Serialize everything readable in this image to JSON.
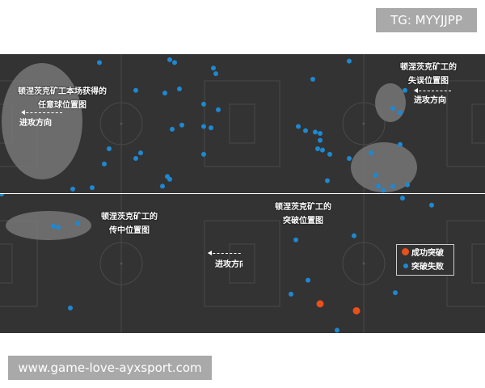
{
  "header_tag": "TG: MYYJJPP",
  "watermark": "www.game-love-ayxsport.com",
  "colors": {
    "pitch": "#333333",
    "dot_blue": "#1e88d0",
    "dot_orange": "#e8501c",
    "highlight": "#777777"
  },
  "direction_label": "进攻方向",
  "panels": [
    {
      "title_1": "顿涅茨克矿工本场获得的",
      "title_2": "任意球位置图",
      "direction": "left",
      "points": [
        [
          41,
          6
        ],
        [
          70,
          4
        ],
        [
          72,
          6
        ],
        [
          88,
          10
        ],
        [
          89,
          14
        ],
        [
          56,
          26
        ],
        [
          68,
          28
        ],
        [
          74,
          25
        ],
        [
          84,
          36
        ],
        [
          90,
          40
        ],
        [
          71,
          54
        ],
        [
          75,
          51
        ],
        [
          84,
          52
        ],
        [
          87,
          53
        ],
        [
          84,
          72
        ],
        [
          45,
          68
        ],
        [
          58,
          71
        ],
        [
          56,
          75
        ],
        [
          43,
          79
        ],
        [
          69,
          88
        ],
        [
          70,
          90
        ],
        [
          67,
          95
        ],
        [
          38,
          96
        ],
        [
          30,
          97
        ]
      ]
    },
    {
      "title_1": "顿涅茨克矿工的",
      "title_2": "失误位置图",
      "direction": "left",
      "points": [
        [
          44,
          5
        ],
        [
          29,
          18
        ],
        [
          67,
          26
        ],
        [
          62,
          39
        ],
        [
          65,
          42
        ],
        [
          23,
          52
        ],
        [
          26,
          55
        ],
        [
          30,
          56
        ],
        [
          32,
          57
        ],
        [
          32,
          62
        ],
        [
          31,
          68
        ],
        [
          33,
          69
        ],
        [
          36,
          72
        ],
        [
          44,
          75
        ],
        [
          65,
          65
        ],
        [
          53,
          71
        ],
        [
          55,
          87
        ],
        [
          35,
          91
        ],
        [
          56,
          95
        ],
        [
          58,
          98
        ],
        [
          62,
          95
        ],
        [
          68,
          94
        ]
      ]
    },
    {
      "title_1": "顿涅茨克矿工的",
      "title_2": "传中位置图",
      "direction": "left",
      "points": [
        [
          22,
          23
        ],
        [
          24,
          24
        ],
        [
          32,
          21
        ],
        [
          29,
          82
        ]
      ]
    },
    {
      "title_1": "顿涅茨克矿工的",
      "title_2": "突破位置图",
      "direction": "left",
      "legend": {
        "success": "成功突破",
        "fail": "突破失败"
      },
      "points_fail": [
        [
          66,
          3
        ],
        [
          78,
          8
        ],
        [
          46,
          30
        ],
        [
          22,
          33
        ],
        [
          27,
          62
        ],
        [
          20,
          72
        ],
        [
          63,
          71
        ],
        [
          39,
          98
        ]
      ],
      "points_success": [
        [
          32,
          79
        ],
        [
          47,
          84
        ]
      ]
    }
  ]
}
